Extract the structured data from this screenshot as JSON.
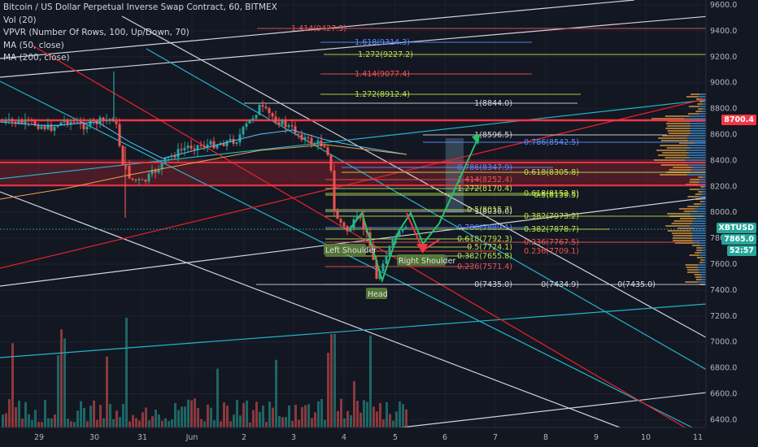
{
  "legend": {
    "title": "Bitcoin / US Dollar Perpetual Inverse Swap Contract, 60, BITMEX",
    "vol": "Vol (20)",
    "vpvr": "VPVR (Number Of Rows, 100, Up/Down, 70)",
    "ma50": "MA (50, close)",
    "ma200": "MA (200, close)"
  },
  "colors": {
    "background": "#131722",
    "up": "#26a69a",
    "down": "#ef5350",
    "white_channel": "#d1d4dc",
    "cyan_channel": "#22b5c9",
    "red_line": "#e0202a",
    "green_arrow": "#26c26a",
    "fib_green": "#b7e24a",
    "fib_red": "#ef5350",
    "fib_blue": "#5b8cff"
  },
  "badges": {
    "red_level": "8700.4",
    "symbol": "XBTUSD",
    "price": "7865.0",
    "countdown": "52:57"
  },
  "annotations": {
    "left_shoulder": "Left Shoulder",
    "head": "Head",
    "right_shoulder": "Right Shoulder"
  },
  "chart_data": {
    "type": "candlestick",
    "yaxis": {
      "ticks": [
        "9600.0",
        "9400.0",
        "9200.0",
        "9000.0",
        "8800.0",
        "8600.0",
        "8400.0",
        "8200.0",
        "8000.0",
        "7800.0",
        "7600.0",
        "7400.0",
        "7200.0",
        "7000.0",
        "6800.0",
        "6600.0",
        "6400.0"
      ]
    },
    "xaxis": {
      "ticks": [
        "29",
        "30",
        "31",
        "Jun",
        "2",
        "3",
        "4",
        "5",
        "6",
        "7",
        "8",
        "9",
        "10",
        "11"
      ]
    },
    "fib_labels": [
      {
        "text": "1.414(9427.5)",
        "color": "fib_red"
      },
      {
        "text": "1.618(9314.3)",
        "color": "fib_blue"
      },
      {
        "text": "1.272(9227.2)",
        "color": "fib_green"
      },
      {
        "text": "1.414(9077.4)",
        "color": "fib_red"
      },
      {
        "text": "1.272(8912.4)",
        "color": "fib_green"
      },
      {
        "text": "1(8844.0)",
        "color": "white_channel"
      },
      {
        "text": "1(8596.5)",
        "color": "white_channel"
      },
      {
        "text": "0.786(8542.5)",
        "color": "fib_blue"
      },
      {
        "text": "0.786(8347.9)",
        "color": "fib_blue"
      },
      {
        "text": "0.618(8305.8)",
        "color": "fib_green"
      },
      {
        "text": "1.414(8252.4)",
        "color": "fib_red"
      },
      {
        "text": "1.272(8170.4)",
        "color": "fib_green"
      },
      {
        "text": "0.618(8152.8)",
        "color": "fib_green"
      },
      {
        "text": "0.5(8139.5)",
        "color": "fib_green"
      },
      {
        "text": "1(8036.0)",
        "color": "white_channel"
      },
      {
        "text": "0.5(8015.7)",
        "color": "fib_green"
      },
      {
        "text": "0.382(7973.2)",
        "color": "fib_green"
      },
      {
        "text": "0.786(7889.1)",
        "color": "fib_blue"
      },
      {
        "text": "0.382(7878.7)",
        "color": "fib_green"
      },
      {
        "text": "0.618(7792.3)",
        "color": "fib_green"
      },
      {
        "text": "0.236(7767.5)",
        "color": "fib_red"
      },
      {
        "text": "0.5(7724.1)",
        "color": "fib_green"
      },
      {
        "text": "0.236(7709.1)",
        "color": "fib_red"
      },
      {
        "text": "0.382(7655.8)",
        "color": "fib_green"
      },
      {
        "text": "0.236(7571.4)",
        "color": "fib_red"
      },
      {
        "text": "0(7435.0)",
        "color": "white_channel"
      },
      {
        "text": "0(7434.9)",
        "color": "white_channel"
      },
      {
        "text": "0(7435.0)",
        "color": "white_channel"
      }
    ]
  }
}
